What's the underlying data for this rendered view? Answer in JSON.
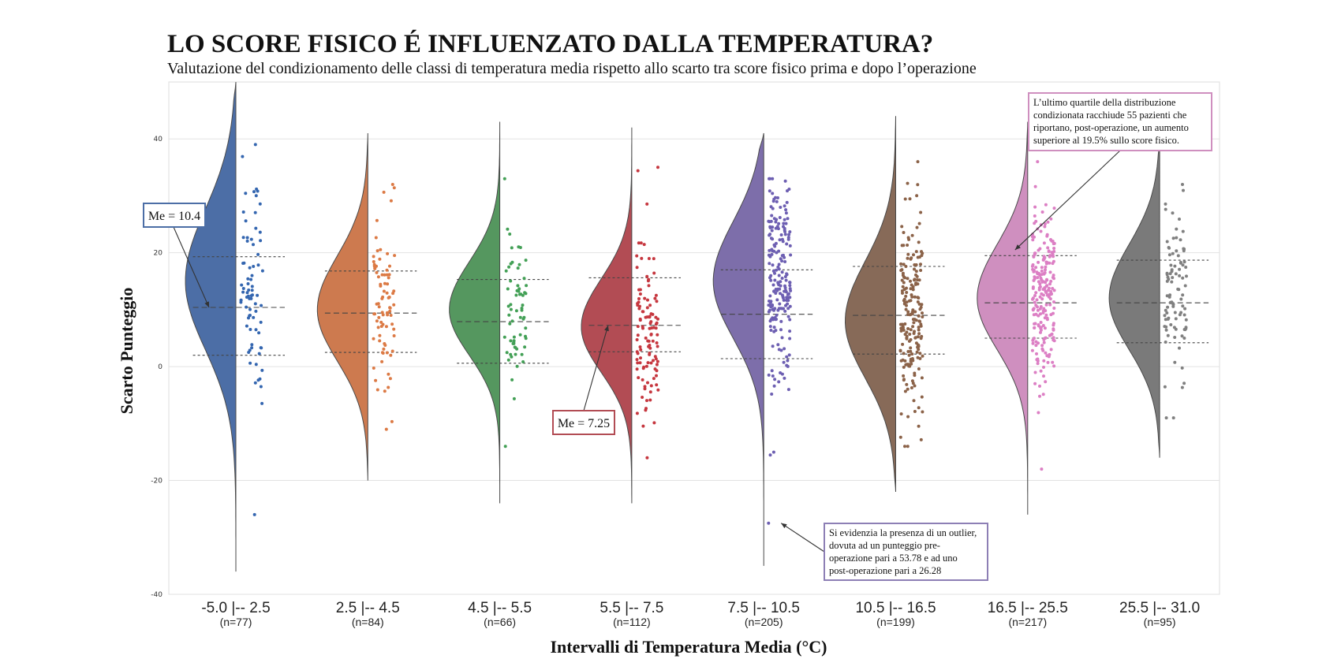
{
  "chart_data": {
    "type": "violin",
    "title": "LO SCORE FISICO É INFLUENZATO DALLA TEMPERATURA?",
    "subtitle": "Valutazione del condizionamento delle classi di temperatura media rispetto allo scarto tra score fisico prima e dopo l’operazione",
    "xlabel": "Intervalli di Temperatura Media (°C)",
    "ylabel": "Scarto Punteggio",
    "ylim": [
      -40,
      50
    ],
    "yticks": [
      -40,
      -20,
      0,
      20,
      40
    ],
    "ytick_labels": [
      "-40",
      "-20",
      "0",
      "20",
      "40"
    ],
    "grid": true,
    "categories": [
      {
        "label": "-5.0 |-- 2.5",
        "count": "(n=77)",
        "n": 77,
        "color": "#4c6ea6",
        "point_color": "#3466b0",
        "min": -36,
        "max": 50,
        "q1": 2.0,
        "median": 10.4,
        "q3": 19.3,
        "mode": 15,
        "spread": 12,
        "pts_lo": -26,
        "pts_hi": 39
      },
      {
        "label": "2.5 |-- 4.5",
        "count": "(n=84)",
        "n": 84,
        "color": "#cd7a4f",
        "point_color": "#dc7a45",
        "min": -20,
        "max": 41,
        "q1": 2.5,
        "median": 9.4,
        "q3": 16.8,
        "mode": 10,
        "spread": 9,
        "pts_lo": -11,
        "pts_hi": 32
      },
      {
        "label": "4.5 |-- 5.5",
        "count": "(n=66)",
        "n": 66,
        "color": "#55975f",
        "point_color": "#43a056",
        "min": -24,
        "max": 43,
        "q1": 0.6,
        "median": 7.9,
        "q3": 15.3,
        "mode": 10,
        "spread": 8,
        "pts_lo": -14,
        "pts_hi": 33
      },
      {
        "label": "5.5 |-- 7.5",
        "count": "(n=112)",
        "n": 112,
        "color": "#b24c54",
        "point_color": "#c6373f",
        "min": -24,
        "max": 42,
        "q1": 2.6,
        "median": 7.25,
        "q3": 15.6,
        "mode": 7,
        "spread": 8,
        "pts_lo": -16,
        "pts_hi": 35
      },
      {
        "label": "7.5 |-- 10.5",
        "count": "(n=205)",
        "n": 205,
        "color": "#7d6eaa",
        "point_color": "#6d5fb2",
        "min": -35,
        "max": 41,
        "q1": 1.4,
        "median": 9.2,
        "q3": 17.0,
        "mode": 15,
        "spread": 10,
        "pts_lo": -27.5,
        "pts_hi": 33
      },
      {
        "label": "10.5 |-- 16.5",
        "count": "(n=199)",
        "n": 199,
        "color": "#876a58",
        "point_color": "#8b6248",
        "min": -22,
        "max": 44,
        "q1": 2.2,
        "median": 9.0,
        "q3": 17.6,
        "mode": 8,
        "spread": 10,
        "pts_lo": -14,
        "pts_hi": 36
      },
      {
        "label": "16.5 |-- 25.5",
        "count": "(n=217)",
        "n": 217,
        "color": "#cf8fbf",
        "point_color": "#dc7fc4",
        "min": -26,
        "max": 43,
        "q1": 5.0,
        "median": 11.2,
        "q3": 19.5,
        "mode": 12,
        "spread": 9,
        "pts_lo": -18,
        "pts_hi": 36
      },
      {
        "label": "25.5 |-- 31.0",
        "count": "(n=95)",
        "n": 95,
        "color": "#7a7a7a",
        "point_color": "#808080",
        "min": -16,
        "max": 40,
        "q1": 4.2,
        "median": 11.2,
        "q3": 18.7,
        "mode": 12,
        "spread": 9,
        "pts_lo": -9,
        "pts_hi": 32
      }
    ],
    "annotations": [
      {
        "id": "me1",
        "text": "Me = 10.4",
        "border": "#4c6ea6",
        "category": 0,
        "y": 10.4
      },
      {
        "id": "me2",
        "text": "Me = 7.25",
        "border": "#b24c54",
        "category": 3,
        "y": 7.25
      },
      {
        "id": "note-q3",
        "lines": [
          "L’ultimo quartile della distribuzione",
          "condizionata racchiude 55 pazienti che",
          "riportano, post-operazione, un aumento",
          "superiore al 19.5% sullo score fisico."
        ],
        "border": "#cf8fbf",
        "category": 6,
        "y": 20.5
      },
      {
        "id": "note-outlier",
        "lines": [
          "Si evidenzia la presenza di un outlier,",
          "dovuta ad un punteggio pre-",
          "operazione pari a 53.78 e ad uno",
          "post-operazione pari a 26.28"
        ],
        "border": "#8d7fb5",
        "category": 4,
        "y": -27.5
      }
    ]
  }
}
